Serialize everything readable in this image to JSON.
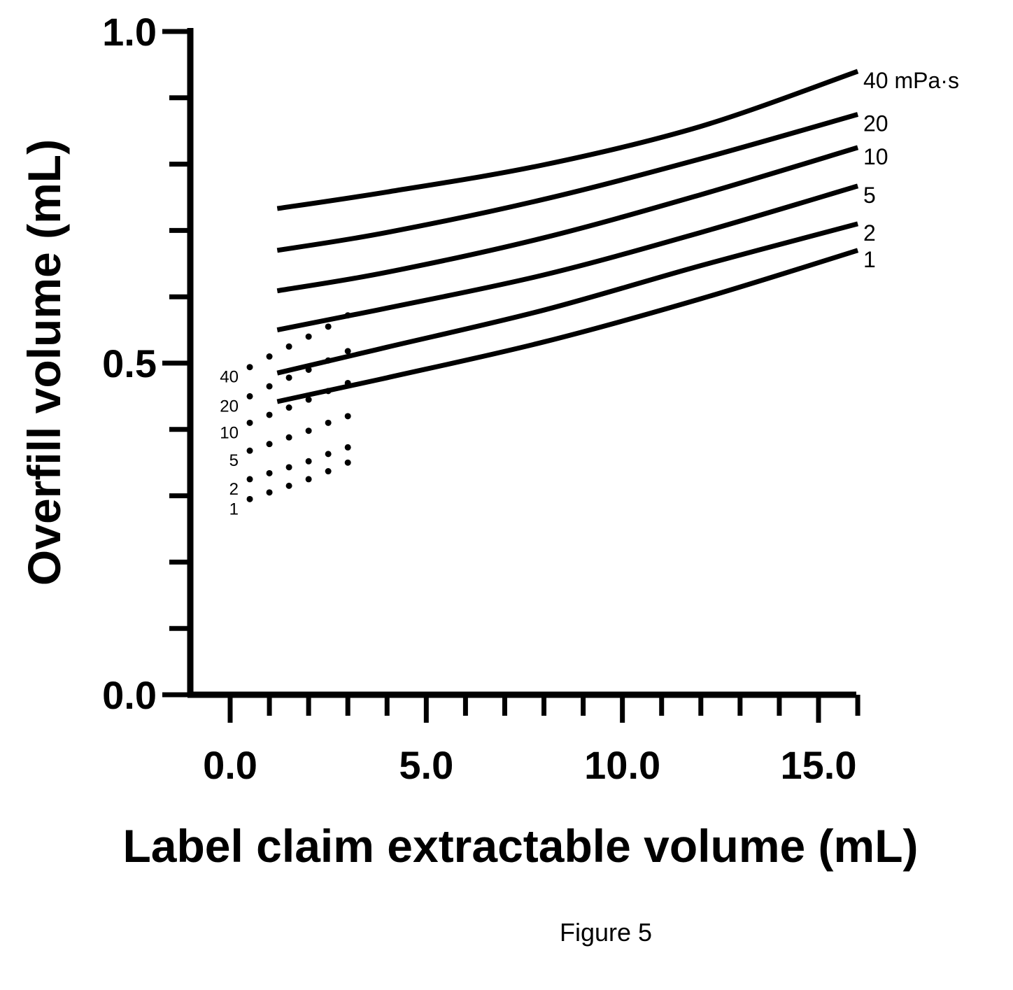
{
  "chart_data": {
    "type": "line",
    "xlabel": "Label claim extractable volume (mL)",
    "ylabel": "Overfill volume (mL)",
    "xlim": [
      -1.7,
      16
    ],
    "ylim": [
      0,
      1.0
    ],
    "x_ticks": [
      "0.0",
      "5.0",
      "10.0",
      "15.0"
    ],
    "y_ticks": [
      "0.0",
      "0.5",
      "1.0"
    ],
    "x_tick_values": [
      0,
      5,
      10,
      15
    ],
    "y_tick_values": [
      0,
      0.5,
      1.0
    ],
    "x_minor_step": 1,
    "y_minor_step": 0.1,
    "unit_label": "mPa·s",
    "series": [
      {
        "name": "1",
        "solid": {
          "x": [
            1.2,
            4,
            8,
            12,
            16
          ],
          "y": [
            0.442,
            0.478,
            0.532,
            0.597,
            0.67
          ]
        },
        "dotted": {
          "x": [
            0.5,
            1.0,
            1.5,
            2.0,
            2.5,
            3.0
          ],
          "y": [
            0.295,
            0.305,
            0.315,
            0.325,
            0.337,
            0.35
          ]
        }
      },
      {
        "name": "2",
        "solid": {
          "x": [
            1.2,
            4,
            8,
            12,
            16
          ],
          "y": [
            0.485,
            0.524,
            0.58,
            0.647,
            0.71
          ]
        },
        "dotted": {
          "x": [
            0.5,
            1.0,
            1.5,
            2.0,
            2.5,
            3.0
          ],
          "y": [
            0.325,
            0.334,
            0.343,
            0.352,
            0.363,
            0.373
          ]
        }
      },
      {
        "name": "5",
        "solid": {
          "x": [
            1.2,
            4,
            8,
            12,
            16
          ],
          "y": [
            0.55,
            0.583,
            0.633,
            0.697,
            0.767
          ]
        },
        "dotted": {
          "x": [
            0.5,
            1.0,
            1.5,
            2.0,
            2.5,
            3.0
          ],
          "y": [
            0.368,
            0.378,
            0.388,
            0.398,
            0.41,
            0.42
          ]
        }
      },
      {
        "name": "10",
        "solid": {
          "x": [
            1.2,
            4,
            8,
            12,
            16
          ],
          "y": [
            0.609,
            0.637,
            0.689,
            0.754,
            0.825
          ]
        },
        "dotted": {
          "x": [
            0.5,
            1.0,
            1.5,
            2.0,
            2.5,
            3.0
          ],
          "y": [
            0.41,
            0.422,
            0.433,
            0.445,
            0.458,
            0.47
          ]
        }
      },
      {
        "name": "20",
        "solid": {
          "x": [
            1.2,
            4,
            8,
            12,
            16
          ],
          "y": [
            0.67,
            0.697,
            0.747,
            0.808,
            0.875
          ]
        },
        "dotted": {
          "x": [
            0.5,
            1.0,
            1.5,
            2.0,
            2.5,
            3.0
          ],
          "y": [
            0.45,
            0.465,
            0.478,
            0.49,
            0.504,
            0.518
          ]
        }
      },
      {
        "name": "40",
        "solid": {
          "x": [
            1.2,
            4,
            8,
            12,
            16
          ],
          "y": [
            0.733,
            0.758,
            0.799,
            0.857,
            0.94
          ]
        },
        "dotted": {
          "x": [
            0.5,
            1.0,
            1.5,
            2.0,
            2.5,
            3.0
          ],
          "y": [
            0.494,
            0.51,
            0.525,
            0.54,
            0.555,
            0.572
          ]
        }
      }
    ],
    "right_labels": [
      "40 mPa·s",
      "20",
      "10",
      "5",
      "2",
      "1"
    ],
    "left_labels": [
      "40",
      "20",
      "10",
      "5",
      "2",
      "1"
    ]
  },
  "caption": "Figure 5"
}
